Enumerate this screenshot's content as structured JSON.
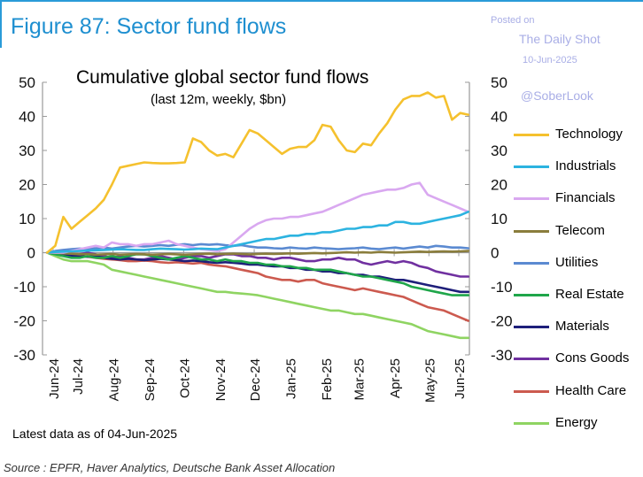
{
  "header": {
    "figure_title": "Figure 87: Sector fund flows"
  },
  "watermark": {
    "posted": "Posted on",
    "site": "The Daily Shot",
    "date": "10-Jun-2025",
    "handle": "@SoberLook"
  },
  "footer": {
    "note": "Latest data as of 04-Jun-2025",
    "source": "Source : EPFR, Haver Analytics, Deutsche Bank Asset Allocation"
  },
  "colors": {
    "accent": "#1e8fd0",
    "axis": "#9a9a9a"
  },
  "chart_data": {
    "type": "line",
    "title": "Cumulative global sector fund flows",
    "subtitle": "(last 12m, weekly, $bn)",
    "xlabel": "",
    "ylabel": "",
    "ylim": [
      -30,
      50
    ],
    "yticks": [
      50,
      40,
      30,
      20,
      10,
      0,
      -10,
      -20,
      -30
    ],
    "grid": false,
    "legend_position": "right",
    "xlim": [
      "2024-06-01",
      "2025-06-05"
    ],
    "x_ticks": [
      "Jun-24",
      "Jul-24",
      "Aug-24",
      "Sep-24",
      "Oct-24",
      "Nov-24",
      "Dec-24",
      "Jan-25",
      "Feb-25",
      "Mar-25",
      "Apr-25",
      "May-25",
      "Jun-25"
    ],
    "x": [
      "2024-06-05",
      "2024-06-12",
      "2024-06-19",
      "2024-06-26",
      "2024-07-03",
      "2024-07-10",
      "2024-07-17",
      "2024-07-24",
      "2024-07-31",
      "2024-08-07",
      "2024-08-14",
      "2024-08-21",
      "2024-08-28",
      "2024-09-04",
      "2024-09-11",
      "2024-09-18",
      "2024-09-25",
      "2024-10-02",
      "2024-10-09",
      "2024-10-16",
      "2024-10-23",
      "2024-10-30",
      "2024-11-06",
      "2024-11-13",
      "2024-11-20",
      "2024-11-27",
      "2024-12-04",
      "2024-12-11",
      "2024-12-18",
      "2024-12-25",
      "2025-01-01",
      "2025-01-08",
      "2025-01-15",
      "2025-01-22",
      "2025-01-29",
      "2025-02-05",
      "2025-02-12",
      "2025-02-19",
      "2025-02-26",
      "2025-03-05",
      "2025-03-12",
      "2025-03-19",
      "2025-03-26",
      "2025-04-02",
      "2025-04-09",
      "2025-04-16",
      "2025-04-23",
      "2025-04-30",
      "2025-05-07",
      "2025-05-14",
      "2025-05-21",
      "2025-05-28",
      "2025-06-04"
    ],
    "series": [
      {
        "name": "Technology",
        "color": "#f5c12e",
        "values": [
          0,
          2,
          10.5,
          7,
          9,
          11,
          13,
          15.5,
          20,
          25,
          25.5,
          26,
          26.5,
          26.3,
          26.2,
          26.2,
          26.3,
          26.5,
          33.5,
          32.5,
          30,
          28.5,
          29,
          28,
          32,
          36,
          35,
          33,
          31,
          29,
          30.5,
          31,
          31,
          33,
          37.5,
          37,
          33,
          30,
          29.5,
          32,
          31.5,
          35,
          38,
          42,
          45,
          46,
          46,
          47,
          45.5,
          46,
          39,
          41,
          40.5
        ]
      },
      {
        "name": "Industrials",
        "color": "#2cb3e0",
        "values": [
          0,
          0.2,
          0.3,
          0.4,
          0.5,
          0.6,
          0.7,
          0.8,
          0.9,
          1,
          0.9,
          0.8,
          0.8,
          1,
          1.2,
          1.1,
          1,
          0.9,
          1,
          1.2,
          1.1,
          1,
          1.5,
          2,
          2.5,
          3,
          3.5,
          4,
          4,
          4.5,
          5,
          5,
          5.5,
          5.5,
          6,
          6,
          6.5,
          7,
          7,
          7.5,
          7.5,
          8,
          8,
          9,
          9,
          8.5,
          8.5,
          9,
          9.5,
          10,
          10.5,
          11,
          12
        ]
      },
      {
        "name": "Financials",
        "color": "#d9a8f0",
        "values": [
          0,
          0,
          0,
          0.5,
          1,
          1.5,
          2,
          1.5,
          3,
          2.5,
          2.5,
          2,
          2.5,
          2.5,
          3,
          3.5,
          2.5,
          2,
          1.5,
          1,
          0.8,
          0.5,
          1,
          3,
          5,
          7,
          8.5,
          9.5,
          10,
          10,
          10.5,
          10.5,
          11,
          11.5,
          12,
          13,
          14,
          15,
          16,
          17,
          17.5,
          18,
          18.5,
          18.5,
          19,
          20,
          20.5,
          17,
          16,
          15,
          14,
          13,
          12
        ]
      },
      {
        "name": "Telecom",
        "color": "#8a7d3c",
        "values": [
          0,
          0,
          -0.2,
          -0.3,
          -0.5,
          -0.4,
          -0.6,
          -0.5,
          -0.4,
          -0.6,
          -0.5,
          -0.4,
          -0.5,
          -0.6,
          -0.5,
          -0.4,
          -0.5,
          -0.6,
          -0.5,
          -0.4,
          -0.3,
          -0.5,
          -0.4,
          -0.3,
          -0.4,
          -0.5,
          -0.4,
          -0.3,
          -0.4,
          -0.3,
          -0.2,
          -0.3,
          -0.2,
          -0.1,
          -0.2,
          -0.1,
          0,
          0.1,
          0,
          0.1,
          0,
          0.2,
          0.1,
          0,
          0.1,
          0.2,
          0.3,
          0.2,
          0.3,
          0.4,
          0.3,
          0.4,
          0.5
        ]
      },
      {
        "name": "Utilities",
        "color": "#5b8ad1",
        "values": [
          0,
          0.5,
          0.8,
          1,
          1.2,
          1,
          1.3,
          1.5,
          1.2,
          1.5,
          1.8,
          2,
          1.8,
          2,
          2.2,
          2,
          2.3,
          2.5,
          2.2,
          2.5,
          2.3,
          2.5,
          2.2,
          2,
          2.2,
          1.8,
          1.5,
          1.5,
          1.3,
          1.2,
          1.5,
          1.3,
          1.2,
          1.5,
          1.3,
          1.2,
          1,
          1.2,
          1.3,
          1.5,
          1.2,
          1,
          1.3,
          1.5,
          1.2,
          1.5,
          1.8,
          1.5,
          2,
          1.8,
          1.5,
          1.5,
          1.3
        ]
      },
      {
        "name": "Real Estate",
        "color": "#1fa64a",
        "values": [
          0,
          -0.5,
          -1,
          -1.5,
          -1.5,
          -1,
          -1.5,
          -1.5,
          -1,
          -1.5,
          -1,
          -0.5,
          -0.5,
          -1,
          -1.5,
          -2,
          -1.5,
          -1,
          -1.5,
          -2,
          -2,
          -2.5,
          -2,
          -2.5,
          -2.5,
          -3,
          -3,
          -3.5,
          -3.5,
          -4,
          -4,
          -4.5,
          -4.5,
          -5,
          -5,
          -5,
          -5.5,
          -6,
          -6.5,
          -7,
          -7,
          -7.5,
          -8,
          -8.5,
          -9,
          -10,
          -10.5,
          -11,
          -11.5,
          -12,
          -12.5,
          -12.5,
          -12.5
        ]
      },
      {
        "name": "Materials",
        "color": "#1e1f7a",
        "values": [
          0,
          -0.3,
          -0.5,
          -0.8,
          -1,
          -1.2,
          -1,
          -1.5,
          -1.8,
          -2,
          -1.8,
          -2,
          -2.2,
          -2,
          -1.8,
          -2,
          -2.2,
          -2.5,
          -2.3,
          -2.5,
          -2.8,
          -3,
          -2.8,
          -3,
          -3.2,
          -3.5,
          -3.5,
          -3.8,
          -4,
          -4,
          -4.5,
          -4.5,
          -5,
          -5,
          -5.5,
          -5.5,
          -6,
          -6,
          -6.5,
          -6.5,
          -7,
          -7,
          -7.5,
          -8,
          -8,
          -8.5,
          -9,
          -9.5,
          -10,
          -10.5,
          -11,
          -11.5,
          -11.5
        ]
      },
      {
        "name": "Cons Goods",
        "color": "#7030a0",
        "values": [
          0,
          0,
          -0.5,
          -1,
          -0.5,
          0,
          -0.5,
          -1,
          -1.5,
          -1,
          -1.5,
          -2,
          -2,
          -1.5,
          -1,
          -1.5,
          -2,
          -1.5,
          -1,
          -1,
          -1.5,
          -1,
          -0.5,
          -0.5,
          -1,
          -1,
          -1.5,
          -1.5,
          -2,
          -1.5,
          -1.5,
          -2,
          -2.5,
          -2.5,
          -2,
          -2,
          -1.5,
          -2,
          -2,
          -3,
          -3.5,
          -3,
          -2.5,
          -3,
          -2.5,
          -3,
          -4,
          -4.5,
          -5.5,
          -6,
          -6.5,
          -7,
          -7
        ]
      },
      {
        "name": "Health Care",
        "color": "#cc5a4f",
        "values": [
          0,
          -0.2,
          -0.5,
          -0.8,
          -1,
          -1.2,
          -1.5,
          -1.8,
          -2,
          -2.2,
          -2.5,
          -2.5,
          -2.3,
          -2.5,
          -2.8,
          -3,
          -2.8,
          -3,
          -3.2,
          -3,
          -3.5,
          -3.8,
          -4,
          -4.5,
          -5,
          -5.5,
          -6,
          -7,
          -7.5,
          -8,
          -8,
          -8.5,
          -8,
          -8,
          -9,
          -9.5,
          -10,
          -10.5,
          -11,
          -10.5,
          -11,
          -11.5,
          -12,
          -12.5,
          -13,
          -14,
          -15,
          -16,
          -16.5,
          -17,
          -18,
          -19,
          -20
        ]
      },
      {
        "name": "Energy",
        "color": "#8fd462",
        "values": [
          0,
          -1,
          -2,
          -2.5,
          -2.5,
          -2.5,
          -3,
          -3.5,
          -5,
          -5.5,
          -6,
          -6.5,
          -7,
          -7.5,
          -8,
          -8.5,
          -9,
          -9.5,
          -10,
          -10.5,
          -11,
          -11.5,
          -11.5,
          -11.8,
          -12,
          -12.2,
          -12.5,
          -13,
          -13.5,
          -14,
          -14.5,
          -15,
          -15.5,
          -16,
          -16.5,
          -17,
          -17,
          -17.5,
          -18,
          -18,
          -18.5,
          -19,
          -19.5,
          -20,
          -20.5,
          -21,
          -22,
          -23,
          -23.5,
          -24,
          -24.5,
          -25,
          -25
        ]
      }
    ]
  }
}
